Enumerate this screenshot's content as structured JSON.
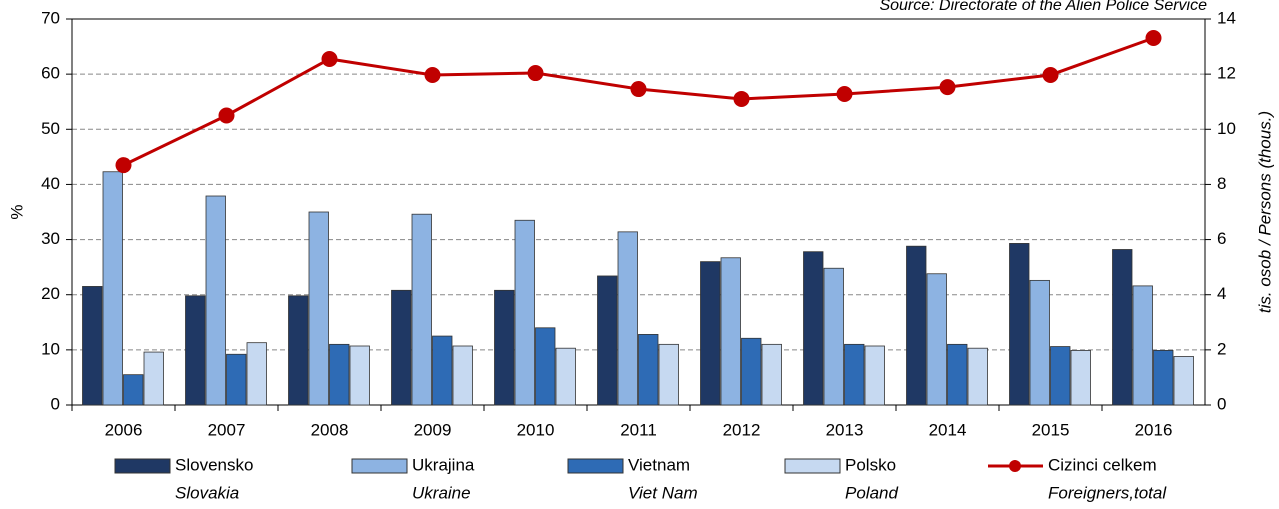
{
  "chart_data": {
    "type": "bar",
    "source": "Source: Directorate of the Alien Police Service",
    "ylabel": "%",
    "y2label": "tis. osob / Persons (thous.)",
    "categories": [
      "2006",
      "2007",
      "2008",
      "2009",
      "2010",
      "2011",
      "2012",
      "2013",
      "2014",
      "2015",
      "2016"
    ],
    "series": [
      {
        "name": "Slovensko",
        "name_en": "Slovakia",
        "color": "#1f3864",
        "type": "bar",
        "values": [
          21.5,
          19.8,
          19.8,
          20.8,
          20.8,
          23.4,
          26,
          27.8,
          28.8,
          29.3,
          28.2
        ]
      },
      {
        "name": "Ukrajina",
        "name_en": "Ukraine",
        "color": "#8db3e2",
        "type": "bar",
        "values": [
          42.3,
          37.9,
          35,
          34.6,
          33.5,
          31.4,
          26.7,
          24.8,
          23.8,
          22.6,
          21.6
        ]
      },
      {
        "name": "Vietnam",
        "name_en": "Viet Nam",
        "color": "#2e6bb5",
        "type": "bar",
        "values": [
          5.5,
          9.2,
          11,
          12.5,
          14,
          12.8,
          12.1,
          11,
          11,
          10.6,
          9.9
        ]
      },
      {
        "name": "Polsko",
        "name_en": "Poland",
        "color": "#c6d9f1",
        "type": "bar",
        "values": [
          9.6,
          11.3,
          10.7,
          10.7,
          10.3,
          11,
          11,
          10.7,
          10.3,
          9.9,
          8.8
        ]
      },
      {
        "name": "Cizinci celkem",
        "name_en": "Foreigners,total",
        "color": "#c00000",
        "type": "line",
        "axis": "y2",
        "values": [
          8.7,
          10.5,
          12.55,
          11.97,
          12.04,
          11.46,
          11.1,
          11.28,
          11.53,
          11.97,
          13.31
        ]
      }
    ],
    "ylim": [
      0,
      70
    ],
    "yticks": [
      0,
      10,
      20,
      30,
      40,
      50,
      60,
      70
    ],
    "y2lim": [
      0,
      14
    ],
    "y2ticks": [
      0,
      2,
      4,
      6,
      8,
      10,
      12,
      14
    ],
    "grid": true
  }
}
